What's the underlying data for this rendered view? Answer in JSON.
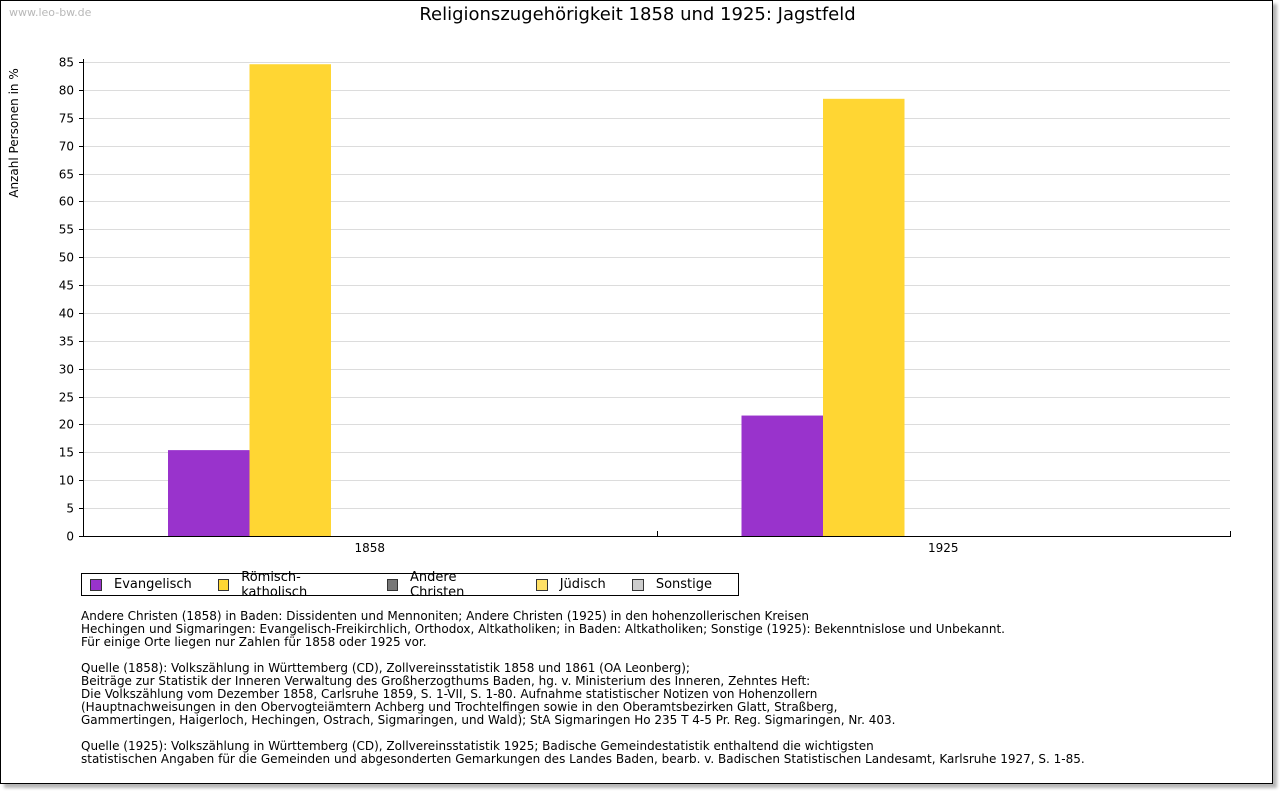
{
  "watermark": "www.leo-bw.de",
  "chart_data": {
    "type": "bar",
    "title": "Religionszugehörigkeit 1858 und 1925: Jagstfeld",
    "ylabel": "Anzahl Personen in %",
    "xlabel": "",
    "categories": [
      "1858",
      "1925"
    ],
    "ylim": [
      0,
      85
    ],
    "ytick_step": 5,
    "grid": true,
    "legend_position": "bottom",
    "series": [
      {
        "name": "Evangelisch",
        "color": "#9933cc",
        "values": [
          15.4,
          21.6
        ]
      },
      {
        "name": "Römisch-katholisch",
        "color": "#ffd633",
        "values": [
          84.6,
          78.4
        ]
      },
      {
        "name": "Andere Christen",
        "color": "#777777",
        "values": [
          0,
          0
        ]
      },
      {
        "name": "Jüdisch",
        "color": "#ffe066",
        "values": [
          0,
          0
        ]
      },
      {
        "name": "Sonstige",
        "color": "#cccccc",
        "values": [
          0,
          0
        ]
      }
    ]
  },
  "notes": {
    "lines1": [
      "Andere Christen (1858) in Baden: Dissidenten und Mennoniten; Andere Christen (1925) in den hohenzollerischen Kreisen",
      "Hechingen und Sigmaringen: Evangelisch-Freikirchlich, Orthodox, Altkatholiken; in Baden: Altkatholiken; Sonstige (1925): Bekenntnislose und Unbekannt.",
      "Für einige Orte liegen nur Zahlen für 1858 oder 1925 vor."
    ],
    "lines2": [
      "Quelle (1858): Volkszählung in Württemberg (CD), Zollvereinsstatistik 1858 und 1861 (OA Leonberg);",
      "Beiträge zur Statistik der Inneren Verwaltung des Großherzogthums Baden, hg. v. Ministerium des Inneren, Zehntes Heft:",
      "Die Volkszählung vom Dezember 1858, Carlsruhe 1859, S. 1-VII, S. 1-80. Aufnahme statistischer Notizen von Hohenzollern",
      "(Hauptnachweisungen in den Obervogteiämtern Achberg und Trochtelfingen sowie in den Oberamtsbezirken Glatt, Straßberg,",
      "Gammertingen, Haigerloch, Hechingen, Ostrach, Sigmaringen, und Wald); StA Sigmaringen Ho 235 T 4-5 Pr. Reg. Sigmaringen, Nr. 403."
    ],
    "lines3": [
      "Quelle (1925): Volkszählung in Württemberg (CD), Zollvereinsstatistik 1925; Badische Gemeindestatistik enthaltend die wichtigsten",
      "statistischen Angaben für die Gemeinden und abgesonderten Gemarkungen des Landes Baden, bearb. v. Badischen Statistischen Landesamt, Karlsruhe 1927, S. 1-85."
    ]
  }
}
